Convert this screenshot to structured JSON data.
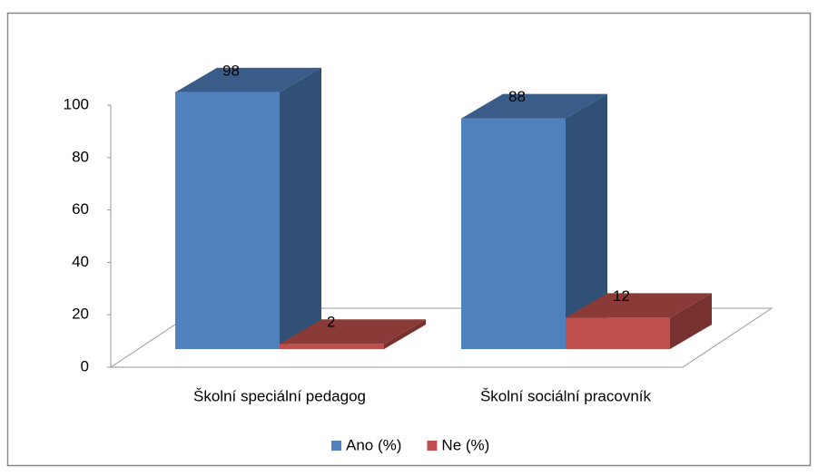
{
  "chart_data": {
    "type": "bar3d",
    "categories": [
      "Školní speciální pedagog",
      "Školní sociální pracovník"
    ],
    "series": [
      {
        "name": "Ano (%)",
        "color": "#4f81bd",
        "values": [
          98,
          88
        ]
      },
      {
        "name": "Ne (%)",
        "color": "#c0504d",
        "values": [
          2,
          12
        ]
      }
    ],
    "ylim": [
      0,
      100
    ],
    "yticks": [
      0,
      20,
      40,
      60,
      80,
      100
    ],
    "legend": "bottom"
  }
}
